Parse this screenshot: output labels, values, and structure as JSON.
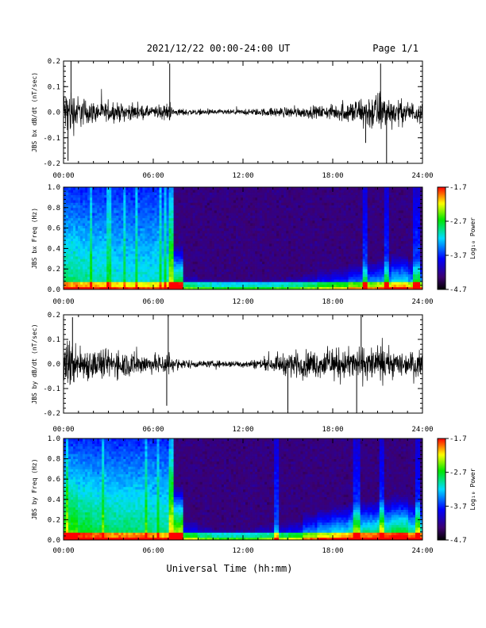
{
  "header": {
    "title": "2021/12/22  00:00-24:00 UT",
    "page": "Page 1/1"
  },
  "footer": {
    "xlabel": "Universal Time (hh:mm)"
  },
  "colorbar": {
    "label": "Log₁₀ Power",
    "ticks": [
      "-1.7",
      "-2.7",
      "-3.7",
      "-4.7"
    ],
    "range": [
      -4.7,
      -1.7
    ]
  },
  "chart_data": [
    {
      "type": "line",
      "ylabel": "JBS bx dB/dt (nT/sec)",
      "xlabel": "",
      "xlim_hours": [
        0,
        24
      ],
      "ylim": [
        -0.2,
        0.2
      ],
      "xticks": [
        "00:00",
        "06:00",
        "12:00",
        "18:00",
        "24:00"
      ],
      "yticks": [
        "0.2",
        "0.1",
        "0.0",
        "-0.1",
        "-0.2"
      ],
      "series": [
        {
          "x_hours": [
            0,
            0.5,
            1,
            2,
            3,
            4,
            5,
            6,
            7,
            7.5,
            8,
            9,
            10,
            11,
            12,
            13,
            14,
            15,
            16,
            17,
            18,
            19,
            20,
            21,
            22,
            23,
            24
          ],
          "envelope": [
            0.12,
            0.14,
            0.09,
            0.06,
            0.05,
            0.05,
            0.04,
            0.03,
            0.05,
            0.02,
            0.02,
            0.015,
            0.015,
            0.015,
            0.015,
            0.02,
            0.025,
            0.03,
            0.03,
            0.035,
            0.04,
            0.06,
            0.09,
            0.12,
            0.08,
            0.06,
            0.06
          ],
          "spikes": [
            {
              "x_hours": 0.5,
              "value": 0.2
            },
            {
              "x_hours": 0.3,
              "value": -0.19
            },
            {
              "x_hours": 7.1,
              "value": 0.19
            },
            {
              "x_hours": 21.2,
              "value": 0.19
            },
            {
              "x_hours": 21.6,
              "value": -0.2
            },
            {
              "x_hours": 20.2,
              "value": -0.12
            }
          ]
        }
      ]
    },
    {
      "type": "heatmap",
      "ylabel": "JBS bx Freq (Hz)",
      "xlim_hours": [
        0,
        24
      ],
      "ylim": [
        0,
        1.0
      ],
      "xticks": [
        "00:00",
        "06:00",
        "12:00",
        "18:00",
        "24:00"
      ],
      "yticks": [
        "1.0",
        "0.8",
        "0.6",
        "0.4",
        "0.2",
        "0.0"
      ],
      "quiet_start_hours": 7.3,
      "active_level": [
        0.55,
        0.5,
        0.45,
        0.42,
        0.4,
        0.4,
        0.42,
        0.45,
        0.15,
        0.12,
        0.1,
        0.1,
        0.1,
        0.1,
        0.12,
        0.14,
        0.16,
        0.2,
        0.22,
        0.26,
        0.28,
        0.3,
        0.35,
        0.3
      ],
      "bright_streaks_hours": [
        7.2,
        20.2,
        21.6,
        23.6
      ]
    },
    {
      "type": "line",
      "ylabel": "JBS by dB/dt (nT/sec)",
      "xlabel": "",
      "xlim_hours": [
        0,
        24
      ],
      "ylim": [
        -0.2,
        0.2
      ],
      "xticks": [
        "00:00",
        "06:00",
        "12:00",
        "18:00",
        "24:00"
      ],
      "yticks": [
        "0.2",
        "0.1",
        "0.0",
        "-0.1",
        "-0.2"
      ],
      "series": [
        {
          "x_hours": [
            0,
            0.5,
            1,
            2,
            3,
            4,
            5,
            6,
            7,
            7.5,
            8,
            9,
            10,
            11,
            12,
            13,
            14,
            15,
            16,
            17,
            18,
            19,
            20,
            21,
            22,
            23,
            24
          ],
          "envelope": [
            0.13,
            0.14,
            0.11,
            0.09,
            0.08,
            0.08,
            0.07,
            0.05,
            0.08,
            0.03,
            0.03,
            0.02,
            0.02,
            0.02,
            0.02,
            0.03,
            0.04,
            0.07,
            0.08,
            0.08,
            0.09,
            0.09,
            0.1,
            0.1,
            0.08,
            0.07,
            0.07
          ],
          "spikes": [
            {
              "x_hours": 0.6,
              "value": 0.19
            },
            {
              "x_hours": 7.0,
              "value": 0.2
            },
            {
              "x_hours": 6.9,
              "value": -0.17
            },
            {
              "x_hours": 15.0,
              "value": -0.19
            },
            {
              "x_hours": 19.9,
              "value": 0.2
            },
            {
              "x_hours": 19.6,
              "value": -0.2
            }
          ]
        }
      ]
    },
    {
      "type": "heatmap",
      "ylabel": "JBS by Freq (Hz)",
      "xlim_hours": [
        0,
        24
      ],
      "ylim": [
        0,
        1.0
      ],
      "xticks": [
        "00:00",
        "06:00",
        "12:00",
        "18:00",
        "24:00"
      ],
      "yticks": [
        "1.0",
        "0.8",
        "0.6",
        "0.4",
        "0.2",
        "0.0"
      ],
      "quiet_start_hours": 7.3,
      "active_level": [
        0.75,
        0.65,
        0.6,
        0.55,
        0.55,
        0.55,
        0.5,
        0.55,
        0.2,
        0.15,
        0.12,
        0.12,
        0.12,
        0.15,
        0.18,
        0.2,
        0.28,
        0.32,
        0.35,
        0.38,
        0.4,
        0.42,
        0.45,
        0.4
      ],
      "bright_streaks_hours": [
        7.2,
        14.2,
        19.6,
        21.3,
        23.7
      ]
    }
  ]
}
